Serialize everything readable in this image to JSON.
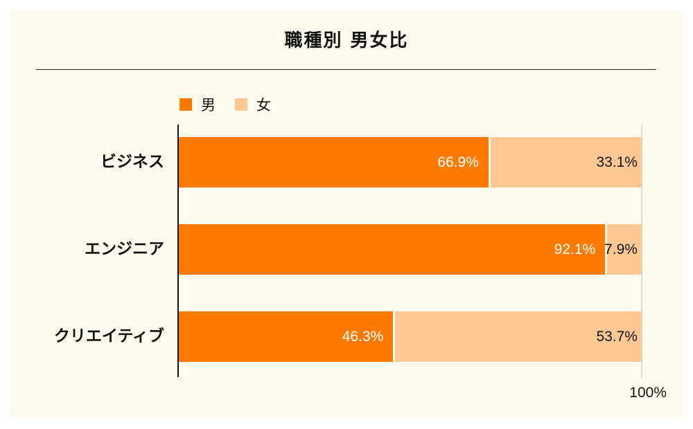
{
  "chart": {
    "title": "職種別 男女比",
    "legend": [
      {
        "label": "男",
        "color": "#ff7b00"
      },
      {
        "label": "女",
        "color": "#ffc794"
      }
    ],
    "rows": [
      {
        "label": "ビジネス",
        "male": 66.9,
        "female": 33.1,
        "male_text": "66.9%",
        "female_text": "33.1%"
      },
      {
        "label": "エンジニア",
        "male": 92.1,
        "female": 7.9,
        "male_text": "92.1%",
        "female_text": "7.9%"
      },
      {
        "label": "クリエイティブ",
        "male": 46.3,
        "female": 53.7,
        "male_text": "46.3%",
        "female_text": "53.7%"
      }
    ],
    "x_tick_label": "100%"
  },
  "chart_data": {
    "type": "bar",
    "orientation": "horizontal",
    "stacked": true,
    "title": "職種別 男女比",
    "categories": [
      "ビジネス",
      "エンジニア",
      "クリエイティブ"
    ],
    "series": [
      {
        "name": "男",
        "values": [
          66.9,
          92.1,
          46.3
        ],
        "color": "#ff7b00"
      },
      {
        "name": "女",
        "values": [
          33.1,
          7.9,
          53.7
        ],
        "color": "#ffc794"
      }
    ],
    "xlabel": "",
    "ylabel": "",
    "xlim": [
      0,
      100
    ],
    "x_ticks": [
      "100%"
    ],
    "legend_position": "top-left",
    "data_labels": true,
    "grid": false
  }
}
